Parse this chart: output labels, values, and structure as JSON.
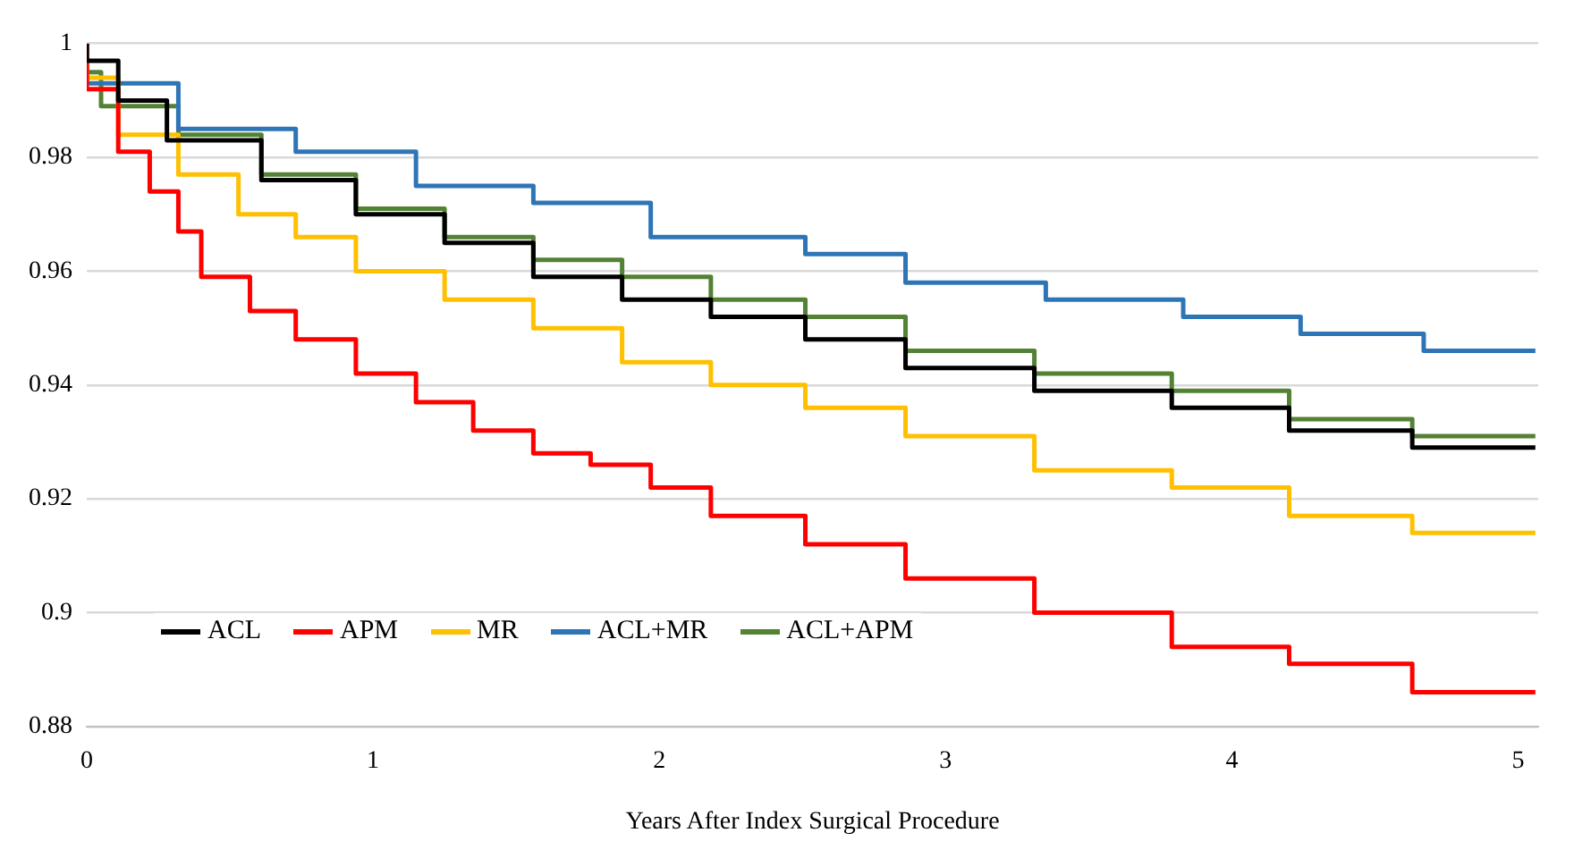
{
  "chart_data": {
    "type": "step",
    "xlabel": "Years After Index Surgical Procedure",
    "xlim": [
      0,
      5.07
    ],
    "xticks": [
      0,
      1,
      2,
      3,
      4,
      5
    ],
    "ylim": [
      0.88,
      1
    ],
    "yticks": [
      0.88,
      0.9,
      0.92,
      0.94,
      0.96,
      0.98,
      1
    ],
    "grid": "y",
    "legend": "bottom left",
    "marker": "none",
    "line_style": "solid",
    "series": [
      {
        "name": "ACL",
        "color": "#000000",
        "x": [
          0,
          0.11,
          0.28,
          0.61,
          0.94,
          1.25,
          1.56,
          1.87,
          2.18,
          2.51,
          2.86,
          3.31,
          3.79,
          4.2,
          4.63,
          5.06
        ],
        "values": [
          1,
          0.997,
          0.99,
          0.983,
          0.976,
          0.97,
          0.965,
          0.959,
          0.955,
          0.952,
          0.948,
          0.943,
          0.939,
          0.936,
          0.932,
          0.929
        ]
      },
      {
        "name": "APM",
        "color": "#ff0000",
        "x": [
          0,
          0.11,
          0.22,
          0.32,
          0.4,
          0.57,
          0.73,
          0.94,
          1.15,
          1.35,
          1.56,
          1.76,
          1.97,
          2.18,
          2.51,
          2.86,
          3.31,
          3.79,
          4.2,
          4.63,
          5.06
        ],
        "values": [
          1,
          0.992,
          0.981,
          0.974,
          0.967,
          0.959,
          0.953,
          0.948,
          0.942,
          0.937,
          0.932,
          0.928,
          0.926,
          0.922,
          0.917,
          0.912,
          0.906,
          0.9,
          0.894,
          0.891,
          0.886
        ]
      },
      {
        "name": "MR",
        "color": "#ffc000",
        "x": [
          0,
          0.11,
          0.32,
          0.53,
          0.73,
          0.94,
          1.25,
          1.56,
          1.87,
          2.18,
          2.51,
          2.86,
          3.31,
          3.79,
          4.2,
          4.63,
          5.06
        ],
        "values": [
          1,
          0.994,
          0.984,
          0.977,
          0.97,
          0.966,
          0.96,
          0.955,
          0.95,
          0.944,
          0.94,
          0.936,
          0.931,
          0.925,
          0.922,
          0.917,
          0.914
        ]
      },
      {
        "name": "ACL+MR",
        "color": "#2e75b6",
        "x": [
          0,
          0.32,
          0.73,
          1.15,
          1.56,
          1.97,
          2.51,
          2.86,
          3.35,
          3.83,
          4.24,
          4.67,
          5.06
        ],
        "values": [
          1,
          0.993,
          0.985,
          0.981,
          0.975,
          0.972,
          0.966,
          0.963,
          0.958,
          0.955,
          0.952,
          0.949,
          0.946
        ]
      },
      {
        "name": "ACL+APM",
        "color": "#548235",
        "x": [
          0,
          0.05,
          0.32,
          0.61,
          0.94,
          1.25,
          1.56,
          1.87,
          2.18,
          2.51,
          2.86,
          3.31,
          3.79,
          4.2,
          4.63,
          5.06
        ],
        "values": [
          1,
          0.995,
          0.989,
          0.984,
          0.977,
          0.971,
          0.966,
          0.962,
          0.959,
          0.955,
          0.952,
          0.946,
          0.942,
          0.939,
          0.934,
          0.931
        ]
      }
    ]
  }
}
